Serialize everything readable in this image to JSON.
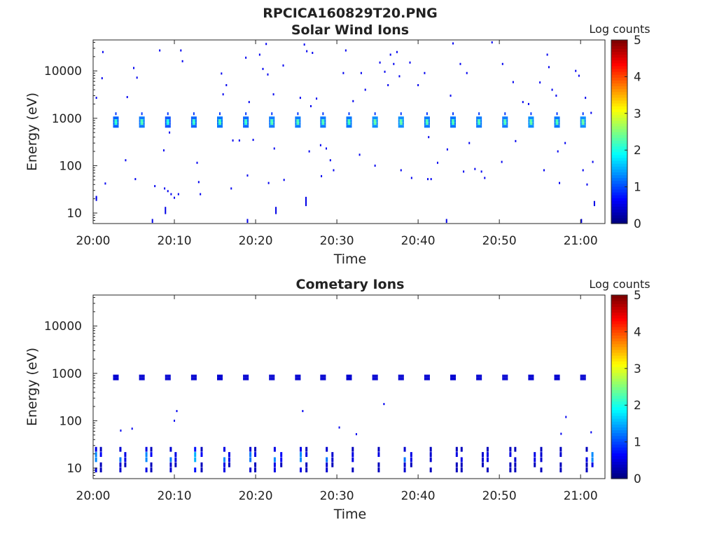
{
  "figure_title": "RPCICA160829T20.PNG",
  "chart_data": [
    {
      "type": "heatmap",
      "title": "Solar Wind Ions",
      "xlabel": "Time",
      "ylabel": "Energy (eV)",
      "x_tick_labels": [
        "20:00",
        "20:10",
        "20:20",
        "20:30",
        "20:40",
        "20:50",
        "21:00"
      ],
      "y_tick_labels": [
        "10",
        "100",
        "1000",
        "10000"
      ],
      "y_scale": "log",
      "ylim": [
        6,
        45000
      ],
      "xlim_minutes": [
        0,
        63
      ],
      "colorbar": {
        "label": "Log counts",
        "ticks": [
          "0",
          "1",
          "2",
          "3",
          "4",
          "5"
        ],
        "range": [
          0,
          5
        ],
        "colormap": "jet"
      },
      "beam": {
        "energy_center": 830,
        "times_min": [
          2.8,
          6.0,
          9.2,
          12.4,
          15.6,
          18.8,
          22.0,
          25.2,
          28.3,
          31.5,
          34.7,
          37.9,
          41.1,
          44.3,
          47.5,
          50.7,
          53.9,
          57.1,
          60.3
        ],
        "peak_log_counts": [
          2.2,
          2.3,
          2.1,
          2.2,
          2.3,
          2.2,
          2.3,
          2.3,
          2.3,
          2.3,
          2.4,
          2.4,
          2.3,
          2.3,
          2.3,
          2.3,
          2.4,
          2.3,
          2.4
        ]
      },
      "scatter_points": [
        {
          "t": 1.2,
          "e": 25000
        },
        {
          "t": 1.1,
          "e": 7000
        },
        {
          "t": 0.4,
          "e": 2700
        },
        {
          "t": 1.5,
          "e": 42
        },
        {
          "t": 0.4,
          "e": 21
        },
        {
          "t": 4.2,
          "e": 2800
        },
        {
          "t": 5.0,
          "e": 11500
        },
        {
          "t": 5.4,
          "e": 7200
        },
        {
          "t": 4.0,
          "e": 130
        },
        {
          "t": 5.2,
          "e": 52
        },
        {
          "t": 8.2,
          "e": 27000
        },
        {
          "t": 10.8,
          "e": 27000
        },
        {
          "t": 11.0,
          "e": 16000
        },
        {
          "t": 7.6,
          "e": 37
        },
        {
          "t": 8.8,
          "e": 33
        },
        {
          "t": 9.2,
          "e": 29
        },
        {
          "t": 9.6,
          "e": 25
        },
        {
          "t": 10.0,
          "e": 21
        },
        {
          "t": 10.5,
          "e": 25
        },
        {
          "t": 8.7,
          "e": 210
        },
        {
          "t": 9.4,
          "e": 500
        },
        {
          "t": 12.8,
          "e": 115
        },
        {
          "t": 13.0,
          "e": 45
        },
        {
          "t": 13.2,
          "e": 25
        },
        {
          "t": 15.8,
          "e": 8800
        },
        {
          "t": 16.4,
          "e": 5000
        },
        {
          "t": 16.0,
          "e": 3200
        },
        {
          "t": 17.2,
          "e": 340
        },
        {
          "t": 18.0,
          "e": 340
        },
        {
          "t": 17.0,
          "e": 33
        },
        {
          "t": 18.8,
          "e": 19000
        },
        {
          "t": 20.5,
          "e": 22000
        },
        {
          "t": 21.3,
          "e": 37000
        },
        {
          "t": 19.2,
          "e": 2200
        },
        {
          "t": 21.5,
          "e": 8400
        },
        {
          "t": 20.9,
          "e": 11000
        },
        {
          "t": 23.4,
          "e": 13000
        },
        {
          "t": 22.2,
          "e": 3200
        },
        {
          "t": 19.0,
          "e": 62
        },
        {
          "t": 21.6,
          "e": 43
        },
        {
          "t": 23.5,
          "e": 50
        },
        {
          "t": 22.3,
          "e": 230
        },
        {
          "t": 19.7,
          "e": 350
        },
        {
          "t": 26.3,
          "e": 26000
        },
        {
          "t": 26.0,
          "e": 36000
        },
        {
          "t": 27.0,
          "e": 24000
        },
        {
          "t": 25.5,
          "e": 2700
        },
        {
          "t": 26.8,
          "e": 1800
        },
        {
          "t": 27.5,
          "e": 2600
        },
        {
          "t": 28.0,
          "e": 270
        },
        {
          "t": 28.7,
          "e": 230
        },
        {
          "t": 29.2,
          "e": 130
        },
        {
          "t": 29.6,
          "e": 80
        },
        {
          "t": 28.1,
          "e": 60
        },
        {
          "t": 26.6,
          "e": 200
        },
        {
          "t": 31.1,
          "e": 27000
        },
        {
          "t": 30.8,
          "e": 9000
        },
        {
          "t": 33.0,
          "e": 9000
        },
        {
          "t": 32.0,
          "e": 2300
        },
        {
          "t": 33.5,
          "e": 4000
        },
        {
          "t": 32.8,
          "e": 170
        },
        {
          "t": 34.7,
          "e": 100
        },
        {
          "t": 35.3,
          "e": 15000
        },
        {
          "t": 35.9,
          "e": 9600
        },
        {
          "t": 36.6,
          "e": 22000
        },
        {
          "t": 37.4,
          "e": 25000
        },
        {
          "t": 37.0,
          "e": 14000
        },
        {
          "t": 37.7,
          "e": 7700
        },
        {
          "t": 36.3,
          "e": 5000
        },
        {
          "t": 37.9,
          "e": 80
        },
        {
          "t": 39.0,
          "e": 15000
        },
        {
          "t": 40.0,
          "e": 5000
        },
        {
          "t": 40.8,
          "e": 9000
        },
        {
          "t": 39.2,
          "e": 55
        },
        {
          "t": 41.2,
          "e": 52
        },
        {
          "t": 41.6,
          "e": 52
        },
        {
          "t": 41.3,
          "e": 400
        },
        {
          "t": 42.4,
          "e": 115
        },
        {
          "t": 44.3,
          "e": 38000
        },
        {
          "t": 45.2,
          "e": 14000
        },
        {
          "t": 46.0,
          "e": 9000
        },
        {
          "t": 44.0,
          "e": 3000
        },
        {
          "t": 43.6,
          "e": 220
        },
        {
          "t": 45.6,
          "e": 75
        },
        {
          "t": 46.3,
          "e": 300
        },
        {
          "t": 47.0,
          "e": 85
        },
        {
          "t": 47.8,
          "e": 75
        },
        {
          "t": 48.2,
          "e": 55
        },
        {
          "t": 49.1,
          "e": 40000
        },
        {
          "t": 50.4,
          "e": 14000
        },
        {
          "t": 51.7,
          "e": 5800
        },
        {
          "t": 52.9,
          "e": 2200
        },
        {
          "t": 50.3,
          "e": 120
        },
        {
          "t": 52.0,
          "e": 330
        },
        {
          "t": 53.6,
          "e": 2000
        },
        {
          "t": 55.0,
          "e": 5700
        },
        {
          "t": 55.5,
          "e": 80
        },
        {
          "t": 55.9,
          "e": 22000
        },
        {
          "t": 56.1,
          "e": 12000
        },
        {
          "t": 56.5,
          "e": 4000
        },
        {
          "t": 57.0,
          "e": 3000
        },
        {
          "t": 57.2,
          "e": 200
        },
        {
          "t": 57.4,
          "e": 43
        },
        {
          "t": 58.1,
          "e": 300
        },
        {
          "t": 59.4,
          "e": 10000
        },
        {
          "t": 59.8,
          "e": 7900
        },
        {
          "t": 60.6,
          "e": 2700
        },
        {
          "t": 61.3,
          "e": 1300
        },
        {
          "t": 60.3,
          "e": 80
        },
        {
          "t": 60.8,
          "e": 40
        },
        {
          "t": 61.5,
          "e": 120
        }
      ],
      "low_energy_streaks": [
        {
          "t": 0.4,
          "e_lo": 18,
          "e_hi": 23
        },
        {
          "t": 7.3,
          "e_lo": 6.2,
          "e_hi": 7.5
        },
        {
          "t": 8.9,
          "e_lo": 9.5,
          "e_hi": 13.5
        },
        {
          "t": 22.5,
          "e_lo": 9.5,
          "e_hi": 13.5
        },
        {
          "t": 26.2,
          "e_lo": 14,
          "e_hi": 22
        },
        {
          "t": 19.0,
          "e_lo": 6.2,
          "e_hi": 7.5
        },
        {
          "t": 43.5,
          "e_lo": 6.2,
          "e_hi": 7.5
        },
        {
          "t": 60.1,
          "e_lo": 6.2,
          "e_hi": 7.5
        },
        {
          "t": 61.7,
          "e_lo": 14,
          "e_hi": 18
        }
      ]
    },
    {
      "type": "heatmap",
      "title": "Cometary Ions",
      "xlabel": "Time",
      "ylabel": "Energy (eV)",
      "x_tick_labels": [
        "20:00",
        "20:10",
        "20:20",
        "20:30",
        "20:40",
        "20:50",
        "21:00"
      ],
      "y_tick_labels": [
        "10",
        "100",
        "1000",
        "10000"
      ],
      "y_scale": "log",
      "ylim": [
        6,
        45000
      ],
      "xlim_minutes": [
        0,
        63
      ],
      "colorbar": {
        "label": "Log counts",
        "ticks": [
          "0",
          "1",
          "2",
          "3",
          "4",
          "5"
        ],
        "range": [
          0,
          5
        ],
        "colormap": "jet"
      },
      "beam": {
        "energy_center": 820,
        "times_min": [
          2.8,
          6.0,
          9.2,
          12.4,
          15.6,
          18.8,
          22.0,
          25.2,
          28.3,
          31.5,
          34.7,
          37.9,
          41.1,
          44.3,
          47.5,
          50.7,
          53.9,
          57.1,
          60.3
        ],
        "peak_log_counts": [
          1.4,
          1.3,
          1.3,
          1.3,
          1.3,
          1.3,
          1.4,
          1.3,
          1.3,
          1.4,
          1.4,
          1.3,
          1.3,
          1.3,
          1.3,
          1.3,
          1.3,
          1.3,
          1.3
        ]
      },
      "low_energy_bands": {
        "e_lo": 8,
        "e_hi": 28,
        "times_min": [
          0.4,
          1.0,
          3.4,
          4.0,
          6.6,
          7.2,
          9.6,
          10.2,
          12.6,
          13.4,
          16.2,
          16.8,
          19.4,
          20.0,
          22.4,
          23.2,
          25.6,
          26.3,
          28.8,
          29.5,
          32.0,
          35.2,
          38.4,
          39.2,
          41.6,
          44.8,
          45.4,
          48.0,
          48.6,
          51.4,
          52.0,
          54.4,
          55.2,
          57.6,
          60.8,
          61.5
        ],
        "peak_log_counts": [
          1.3,
          0.6,
          1.2,
          0.5,
          1.3,
          0.6,
          1.2,
          0.5,
          1.5,
          0.6,
          1.3,
          0.5,
          1.2,
          0.5,
          1.3,
          0.6,
          1.3,
          0.5,
          1.2,
          0.4,
          0.5,
          0.5,
          1.2,
          0.5,
          0.4,
          0.5,
          0.5,
          0.4,
          0.5,
          0.5,
          0.4,
          0.5,
          0.4,
          0.4,
          0.5,
          1.3
        ]
      },
      "scatter_points": [
        {
          "t": 3.4,
          "e": 62
        },
        {
          "t": 4.8,
          "e": 68
        },
        {
          "t": 10.0,
          "e": 100
        },
        {
          "t": 10.3,
          "e": 160
        },
        {
          "t": 25.8,
          "e": 160
        },
        {
          "t": 30.3,
          "e": 72
        },
        {
          "t": 32.4,
          "e": 52
        },
        {
          "t": 35.8,
          "e": 225
        },
        {
          "t": 57.6,
          "e": 53
        },
        {
          "t": 58.2,
          "e": 120
        },
        {
          "t": 61.3,
          "e": 57
        }
      ]
    }
  ]
}
